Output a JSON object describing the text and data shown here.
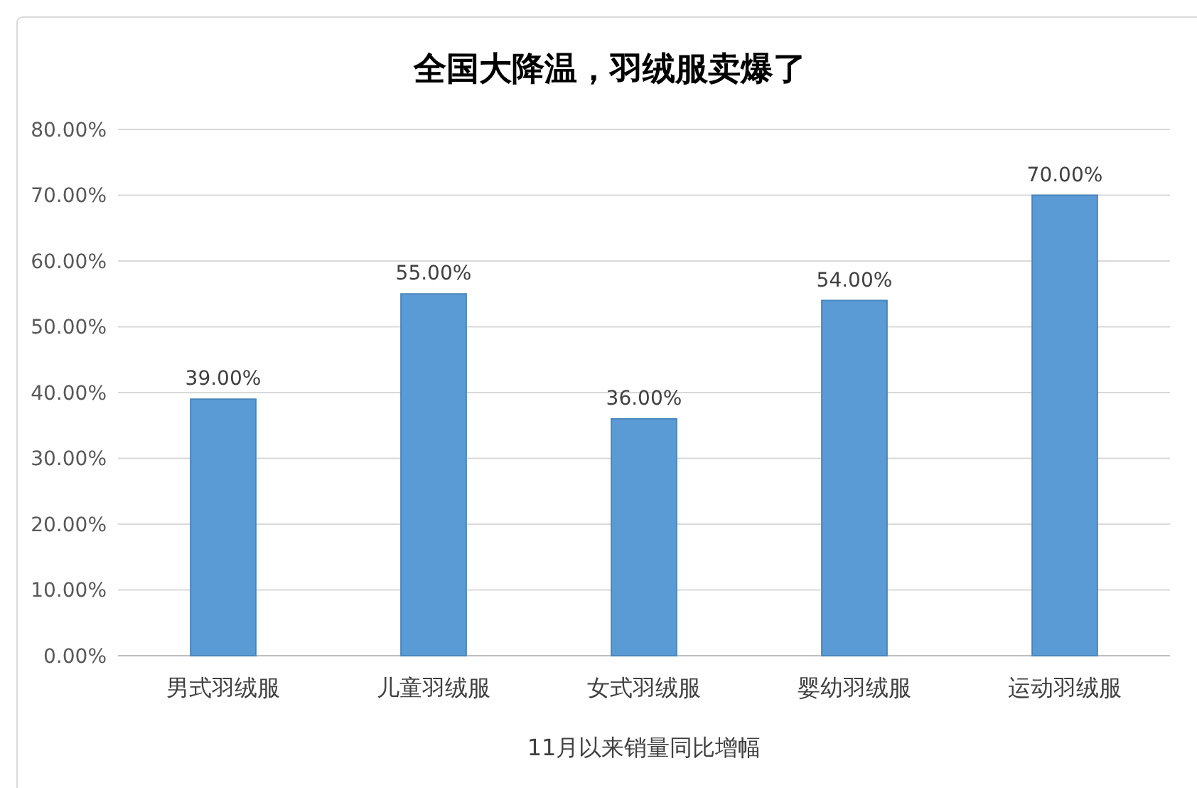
{
  "chart_data": {
    "type": "bar",
    "title": "全国大降温，羽绒服卖爆了",
    "xlabel": "11月以来销量同比增幅",
    "categories": [
      "男式羽绒服",
      "儿童羽绒服",
      "女式羽绒服",
      "婴幼羽绒服",
      "运动羽绒服"
    ],
    "values": [
      39,
      55,
      36,
      54,
      70
    ],
    "value_labels": [
      "39.00%",
      "55.00%",
      "36.00%",
      "54.00%",
      "70.00%"
    ],
    "color": "#5b9bd5",
    "ylim": [
      0,
      80
    ],
    "yticks": [
      {
        "value": 0,
        "label": "0.00%"
      },
      {
        "value": 10,
        "label": "10.00%"
      },
      {
        "value": 20,
        "label": "20.00%"
      },
      {
        "value": 30,
        "label": "30.00%"
      },
      {
        "value": 40,
        "label": "40.00%"
      },
      {
        "value": 50,
        "label": "50.00%"
      },
      {
        "value": 60,
        "label": "60.00%"
      },
      {
        "value": 70,
        "label": "70.00%"
      },
      {
        "value": 80,
        "label": "80.00%"
      }
    ],
    "grid": "y"
  }
}
